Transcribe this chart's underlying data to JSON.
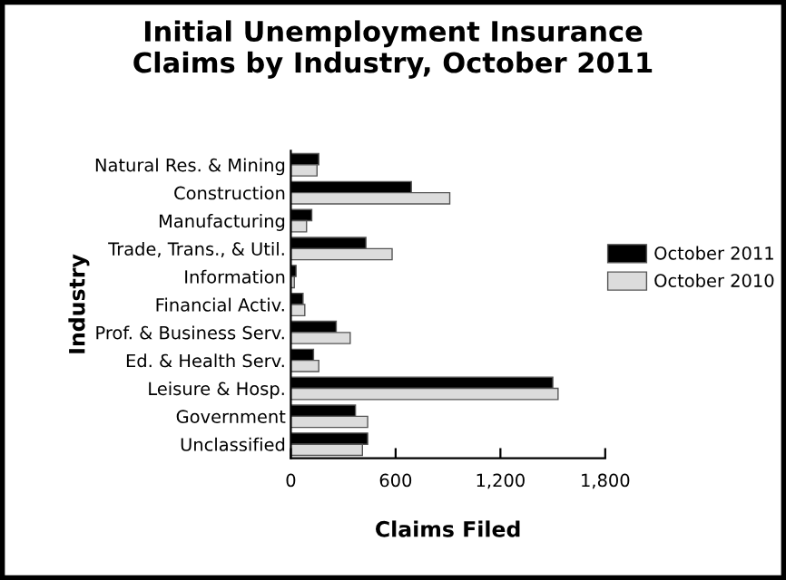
{
  "chart_data": {
    "type": "bar",
    "orientation": "horizontal",
    "title": "Initial Unemployment Insurance\nClaims by Industry, October 2011",
    "xlabel": "Claims Filed",
    "ylabel": "Industry",
    "categories": [
      "Natural Res. & Mining",
      "Construction",
      "Manufacturing",
      "Trade, Trans., & Util.",
      "Information",
      "Financial Activ.",
      "Prof. & Business Serv.",
      "Ed. & Health Serv.",
      "Leisure & Hosp.",
      "Government",
      "Unclassified"
    ],
    "series": [
      {
        "name": "October 2011",
        "color": "#000000",
        "values": [
          160,
          690,
          120,
          430,
          30,
          70,
          260,
          130,
          1500,
          370,
          440
        ]
      },
      {
        "name": "October 2010",
        "color": "#dcdcdc",
        "values": [
          150,
          910,
          90,
          580,
          20,
          80,
          340,
          160,
          1530,
          440,
          410
        ]
      }
    ],
    "xlim": [
      0,
      1800
    ],
    "xticks": [
      0,
      {
        "value": 600,
        "label": "600"
      },
      {
        "value": 1200,
        "label": "1,200"
      },
      {
        "value": 1800,
        "label": "1,800"
      }
    ],
    "grid": false,
    "legend": "right"
  }
}
